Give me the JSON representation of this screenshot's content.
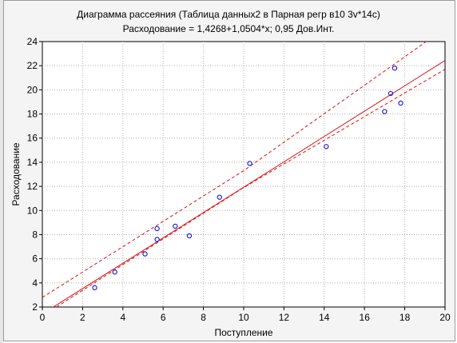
{
  "chart_data": {
    "type": "scatter",
    "title": "Диаграмма рассеяния (Таблица данных2 в Парная регр в10 3v*14c)",
    "subtitle": "Расходование = 1,4268+1,0504*x; 0,95 Дов.Инт.",
    "xlabel": "Поступление",
    "ylabel": "Расходование",
    "xlim": [
      0,
      20
    ],
    "ylim": [
      2,
      24
    ],
    "x_ticks": [
      0,
      2,
      4,
      6,
      8,
      10,
      12,
      14,
      16,
      18,
      20
    ],
    "y_ticks": [
      2,
      4,
      6,
      8,
      10,
      12,
      14,
      16,
      18,
      20,
      22,
      24
    ],
    "grid": true,
    "points": [
      {
        "x": 2.6,
        "y": 3.6
      },
      {
        "x": 3.6,
        "y": 4.9
      },
      {
        "x": 5.1,
        "y": 6.4
      },
      {
        "x": 5.7,
        "y": 7.6
      },
      {
        "x": 5.7,
        "y": 8.5
      },
      {
        "x": 6.6,
        "y": 8.7
      },
      {
        "x": 7.3,
        "y": 7.9
      },
      {
        "x": 8.8,
        "y": 11.1
      },
      {
        "x": 10.3,
        "y": 13.9
      },
      {
        "x": 14.1,
        "y": 15.3
      },
      {
        "x": 17.0,
        "y": 18.2
      },
      {
        "x": 17.3,
        "y": 19.7
      },
      {
        "x": 17.5,
        "y": 21.8
      },
      {
        "x": 17.8,
        "y": 18.9
      }
    ],
    "regression": {
      "intercept": 1.4268,
      "slope": 1.0504
    },
    "confidence_upper": [
      {
        "x": 0,
        "y": 2.8
      },
      {
        "x": 10,
        "y": 13.3
      },
      {
        "x": 20,
        "y": 25.1
      }
    ],
    "confidence_lower": [
      {
        "x": 0.7,
        "y": 2.0
      },
      {
        "x": 10,
        "y": 11.9
      },
      {
        "x": 20,
        "y": 21.7
      }
    ],
    "colors": {
      "points": "#1f1fd0",
      "fit_line": "#e01010",
      "confidence": "#e01010",
      "grid": "#b0b0b0",
      "plot_bg": "#ffffff",
      "frame_bg": "#f4f4f4"
    }
  }
}
